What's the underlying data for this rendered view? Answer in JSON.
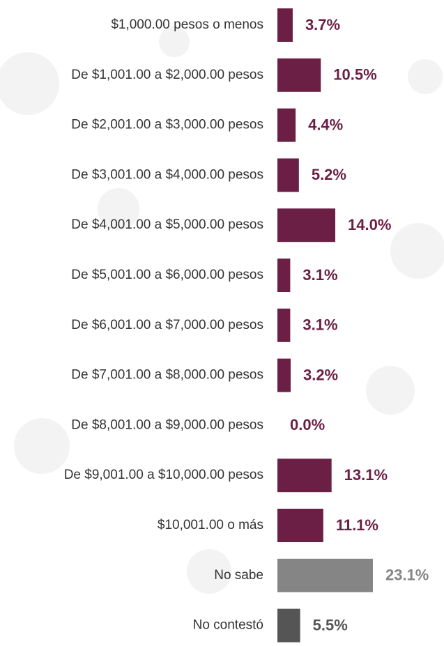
{
  "chart_data": {
    "type": "hbar",
    "categories": [
      "$1,000.00 pesos o menos",
      "De $1,001.00 a $2,000.00 pesos",
      "De $2,001.00 a $3,000.00 pesos",
      "De $3,001.00 a $4,000.00 pesos",
      "De $4,001.00 a $5,000.00 pesos",
      "De $5,001.00 a $6,000.00 pesos",
      "De $6,001.00 a $7,000.00 pesos",
      "De $7,001.00 a $8,000.00 pesos",
      "De $8,001.00 a $9,000.00 pesos",
      "De $9,001.00 a $10,000.00 pesos",
      "$10,001.00 o más",
      "No sabe",
      "No contestó"
    ],
    "values": [
      3.7,
      10.5,
      4.4,
      5.2,
      14.0,
      3.1,
      3.1,
      3.2,
      0.0,
      13.1,
      11.1,
      23.1,
      5.5
    ],
    "value_labels": [
      "3.7%",
      "10.5%",
      "4.4%",
      "5.2%",
      "14.0%",
      "3.1%",
      "3.1%",
      "3.2%",
      "0.0%",
      "13.1%",
      "11.1%",
      "23.1%",
      "5.5%"
    ],
    "colors": [
      "#6b1f45",
      "#6b1f45",
      "#6b1f45",
      "#6b1f45",
      "#6b1f45",
      "#6b1f45",
      "#6b1f45",
      "#6b1f45",
      "#6b1f45",
      "#6b1f45",
      "#6b1f45",
      "#858585",
      "#555555"
    ]
  }
}
